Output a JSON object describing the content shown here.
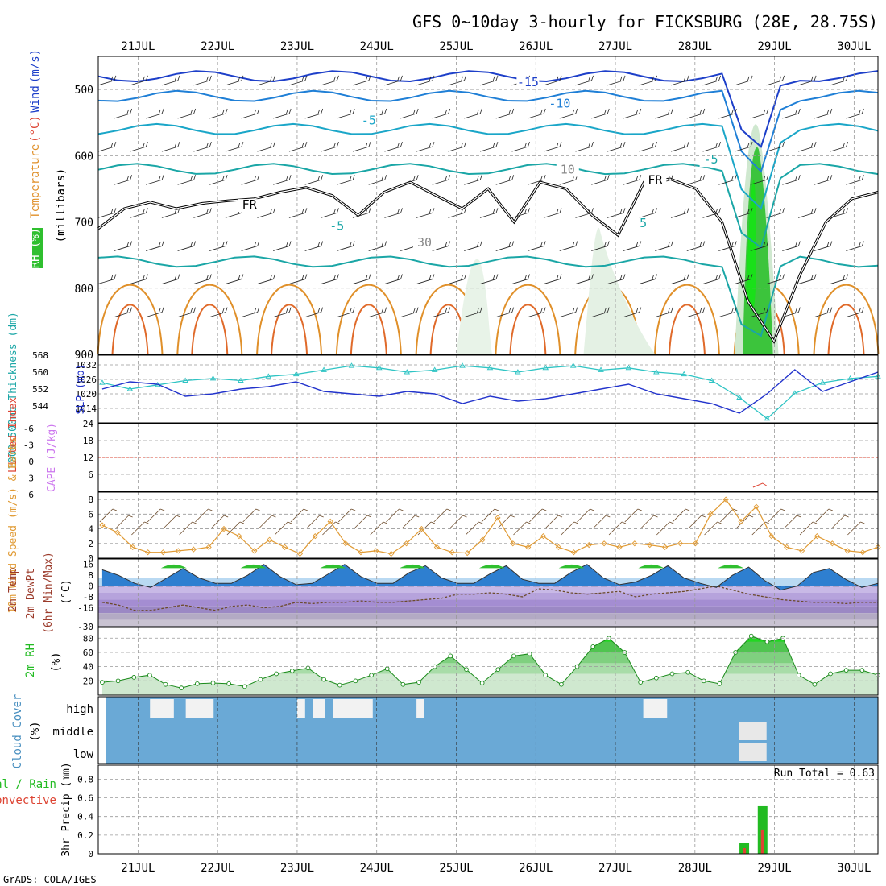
{
  "title": "GFS 0~10day 3-hourly for FICKSBURG (28E, 28.75S)",
  "credit": "GrADS: COLA/IGES",
  "colors": {
    "grid": "#999999",
    "frame": "#000000",
    "wind_contour": "#1d3fc9",
    "temp_contour_cold": "#1aa6a6",
    "temp_contour_warm": "#e0902a",
    "rh_shade": "#2fbf2f",
    "thickness": "#2fc4c4",
    "slp": "#2233cc",
    "cape": "#cc77ee",
    "wind10m": "#e09a33",
    "cloud": "#6aa9d6",
    "precip_total": "#22bb22",
    "precip_conv": "#dd4433"
  },
  "chart_data": [
    {
      "id": "upper_air",
      "type": "heatmap",
      "title": "Upper-air cross section",
      "ylabel_parts": [
        {
          "text": "RH (%)",
          "color": "#2fbf2f"
        },
        {
          "text": "Temperature",
          "color": "#e0902a"
        },
        {
          "text": "(°C)",
          "color": "#dd4433"
        },
        {
          "text": "Wind",
          "color": "#1d3fc9"
        },
        {
          "text": "(m/s)",
          "color": "#1d3fc9"
        }
      ],
      "ylabel2": "(millibars)",
      "yticks": [
        500,
        600,
        700,
        800,
        900
      ],
      "ylim": [
        450,
        900
      ],
      "contour_labels": [
        "-15",
        "-10",
        "-5",
        "-5",
        "-5",
        "5",
        "10",
        "30",
        "FR",
        "FR"
      ],
      "freezing_level_mb": [
        710,
        680,
        670,
        680,
        672,
        668,
        665,
        655,
        648,
        660,
        690,
        655,
        640,
        660,
        680,
        650,
        700,
        640,
        650,
        690,
        720,
        640,
        635,
        650,
        700,
        820,
        880,
        780,
        700,
        665,
        655
      ]
    },
    {
      "id": "thickness_slp",
      "type": "line",
      "ylabel_left": "1000-500mb Thickness (dm)",
      "ylabel_right": "SLP (mb)",
      "yticks_left": [
        544,
        552,
        560,
        568
      ],
      "yticks_right": [
        1014,
        1020,
        1026,
        1032
      ],
      "ylim_left": [
        536,
        568
      ],
      "ylim_right": [
        1008,
        1036
      ],
      "series": [
        {
          "name": "Thickness",
          "values": [
            555,
            552,
            554,
            556,
            557,
            556,
            558,
            559,
            561,
            563,
            562,
            560,
            561,
            563,
            562,
            560,
            562,
            563,
            561,
            562,
            560,
            559,
            556,
            548,
            538,
            550,
            555,
            557,
            558
          ]
        },
        {
          "name": "SLP",
          "values": [
            1022,
            1025,
            1024,
            1019,
            1020,
            1022,
            1023,
            1025,
            1021,
            1020,
            1019,
            1021,
            1020,
            1016,
            1019,
            1017,
            1018,
            1020,
            1022,
            1024,
            1020,
            1018,
            1016,
            1012,
            1020,
            1030,
            1021,
            1025,
            1029
          ]
        }
      ]
    },
    {
      "id": "lifted_cape",
      "type": "bar",
      "ylabel_left": "Lifted Index",
      "ylabel_right": "CAPE (J/kg)",
      "yticks_left": [
        "-6",
        "-3",
        "0",
        "3",
        "6"
      ],
      "yticks_right": [
        6,
        12,
        18,
        24
      ],
      "ylim_right": [
        0,
        24
      ],
      "cape_events": [
        {
          "day": 8.75,
          "value": 23
        }
      ]
    },
    {
      "id": "wind10m",
      "type": "line",
      "ylabel": "10m Wind Speed (m/s) & Barbs",
      "yticks": [
        0,
        2,
        4,
        6,
        8
      ],
      "ylim": [
        0,
        9
      ],
      "values": [
        4.5,
        3.5,
        1.5,
        0.8,
        0.8,
        1.0,
        1.2,
        1.5,
        4.0,
        3.0,
        1.0,
        2.5,
        1.5,
        0.6,
        3.0,
        5.0,
        2.0,
        0.8,
        1.0,
        0.6,
        2.0,
        4.0,
        1.5,
        0.8,
        0.7,
        2.5,
        5.5,
        2.0,
        1.5,
        3.0,
        1.5,
        0.8,
        1.8,
        2.0,
        1.5,
        2.0,
        1.8,
        1.5,
        2.0,
        2.0,
        6.0,
        8.0,
        5.0,
        7.0,
        3.0,
        1.5,
        1.0,
        3.0,
        2.0,
        1.0,
        0.8,
        1.5
      ]
    },
    {
      "id": "temp",
      "type": "area",
      "ylabel": "2m Temp 2m DewPt (6hr Min/Max) (°C)",
      "yticks": [
        16,
        8,
        0,
        -8,
        -16,
        -30
      ],
      "ylim": [
        -30,
        20
      ],
      "temperature": [
        12,
        8,
        2,
        -1,
        6,
        13,
        6,
        2,
        2,
        8,
        16,
        7,
        1,
        2,
        9,
        16,
        7,
        2,
        2,
        10,
        15,
        6,
        2,
        2,
        9,
        15,
        5,
        2,
        2,
        10,
        16,
        6,
        1,
        3,
        8,
        15,
        6,
        2,
        -1,
        8,
        14,
        4,
        -3,
        0,
        10,
        13,
        5,
        -1,
        2
      ],
      "dewpoint": [
        -12,
        -14,
        -18,
        -18,
        -16,
        -14,
        -16,
        -18,
        -15,
        -14,
        -16,
        -15,
        -12,
        -13,
        -12,
        -12,
        -11,
        -12,
        -12,
        -11,
        -10,
        -9,
        -6,
        -6,
        -5,
        -6,
        -8,
        -2,
        -3,
        -5,
        -6,
        -5,
        -4,
        -8,
        -6,
        -5,
        -4,
        -2,
        0,
        -3,
        -6,
        -8,
        -10,
        -11,
        -12,
        -12,
        -13,
        -12,
        -12
      ]
    },
    {
      "id": "rh2m",
      "type": "area",
      "ylabel": "2m RH (%)",
      "yticks": [
        20,
        40,
        60,
        80
      ],
      "ylim": [
        0,
        95
      ],
      "values": [
        18,
        20,
        25,
        28,
        15,
        10,
        16,
        17,
        16,
        12,
        22,
        30,
        34,
        38,
        22,
        14,
        20,
        28,
        37,
        15,
        18,
        40,
        55,
        36,
        17,
        36,
        55,
        58,
        28,
        15,
        40,
        68,
        80,
        60,
        18,
        24,
        30,
        32,
        20,
        16,
        60,
        83,
        75,
        80,
        28,
        15,
        30,
        35,
        35,
        28
      ]
    },
    {
      "id": "cloud",
      "type": "heatmap",
      "ylabel": "Cloud Cover (%)",
      "levels": [
        "high",
        "middle",
        "low"
      ]
    },
    {
      "id": "precip",
      "type": "bar",
      "ylabel_parts": [
        {
          "text": "Total / Rain",
          "color": "#22bb22"
        },
        {
          "text": "Convective",
          "color": "#dd4433"
        }
      ],
      "ylabel2": "3hr Precip (mm)",
      "yticks": [
        "0",
        "0.2",
        "0.4",
        "0.6",
        "0.8"
      ],
      "ylim": [
        0,
        0.95
      ],
      "run_total_label": "Run Total = 0.63",
      "bars": [
        {
          "day": 8.62,
          "total": 0.12,
          "conv": 0.06
        },
        {
          "day": 8.85,
          "total": 0.51,
          "conv": 0.26
        }
      ]
    }
  ],
  "x_axis": {
    "start_day": 20.5,
    "end_day": 30.3,
    "labels": [
      "21JUL",
      "22JUL",
      "23JUL",
      "24JUL",
      "25JUL",
      "26JUL",
      "27JUL",
      "28JUL",
      "29JUL",
      "30JUL"
    ]
  }
}
